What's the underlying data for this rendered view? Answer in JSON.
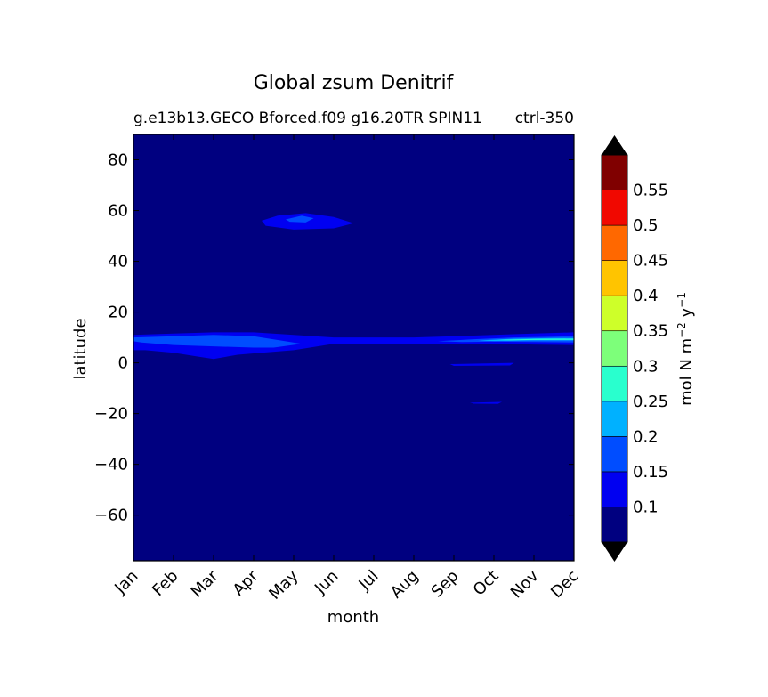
{
  "chart_data": {
    "type": "heatmap",
    "title": "Global zsum Denitrif",
    "subtitle_left": "g.e13b13.GECO Bforced.f09 g16.20TR SPIN11",
    "subtitle_right": "ctrl-350",
    "xlabel": "month",
    "ylabel": "latitude",
    "x_tick_labels": [
      "Jan",
      "Feb",
      "Mar",
      "Apr",
      "May",
      "Jun",
      "Jul",
      "Aug",
      "Sep",
      "Oct",
      "Nov",
      "Dec"
    ],
    "x_range": [
      1,
      12
    ],
    "y_range": [
      -78,
      90
    ],
    "y_ticks": [
      80,
      60,
      40,
      20,
      0,
      -20,
      -40,
      -60
    ],
    "y_tick_labels": [
      "80",
      "60",
      "40",
      "20",
      "0",
      "−20",
      "−40",
      "−60"
    ],
    "colorbar": {
      "label_main": "mol N m",
      "label_sup1": "−2",
      "label_mid": " y",
      "label_sup2": "−1",
      "levels": [
        0.05,
        0.1,
        0.15,
        0.2,
        0.25,
        0.3,
        0.35,
        0.4,
        0.45,
        0.5,
        0.55,
        0.6
      ],
      "tick_labels": [
        "0.1",
        "0.15",
        "0.2",
        "0.25",
        "0.3",
        "0.35",
        "0.4",
        "0.45",
        "0.5",
        "0.55"
      ],
      "colors": [
        "#000080",
        "#0000f1",
        "#004dff",
        "#00b1ff",
        "#29ffce",
        "#7dff7a",
        "#ceff29",
        "#ffc400",
        "#ff6800",
        "#f10800",
        "#800000"
      ],
      "extend_color": "#000000"
    },
    "background_level_color": "#000080",
    "features": [
      {
        "name": "equatorial band",
        "color": "#0000f1",
        "points": [
          [
            1,
            11
          ],
          [
            2,
            11.5
          ],
          [
            3,
            12
          ],
          [
            4,
            12
          ],
          [
            5,
            11
          ],
          [
            6,
            10
          ],
          [
            7,
            10
          ],
          [
            8,
            10
          ],
          [
            9,
            10.5
          ],
          [
            10,
            11
          ],
          [
            11,
            11.5
          ],
          [
            12,
            12
          ],
          [
            12,
            7
          ],
          [
            11,
            7.2
          ],
          [
            10,
            7.5
          ],
          [
            9,
            7.5
          ],
          [
            8,
            7.5
          ],
          [
            7,
            7.5
          ],
          [
            6,
            7.5
          ],
          [
            5,
            5
          ],
          [
            4.2,
            4
          ],
          [
            3.6,
            3.2
          ],
          [
            3,
            1.5
          ],
          [
            2.6,
            2.5
          ],
          [
            2,
            4
          ],
          [
            1.3,
            5
          ],
          [
            1,
            5
          ]
        ]
      },
      {
        "name": "equatorial core Jan-May",
        "color": "#004dff",
        "points": [
          [
            1,
            10
          ],
          [
            2,
            10.5
          ],
          [
            3,
            11
          ],
          [
            4,
            10.5
          ],
          [
            4.8,
            8.5
          ],
          [
            5.2,
            7.5
          ],
          [
            4.5,
            6
          ],
          [
            4,
            6
          ],
          [
            3,
            6.5
          ],
          [
            2,
            7
          ],
          [
            1.2,
            8
          ],
          [
            1,
            8.5
          ]
        ]
      },
      {
        "name": "equatorial core Aug-Dec",
        "color": "#004dff",
        "points": [
          [
            8.6,
            8.5
          ],
          [
            9.5,
            9.3
          ],
          [
            10.5,
            10
          ],
          [
            11.5,
            10.3
          ],
          [
            12,
            10.5
          ],
          [
            12,
            8
          ],
          [
            11,
            8.2
          ],
          [
            10,
            8.3
          ],
          [
            9.2,
            8.2
          ]
        ]
      },
      {
        "name": "equatorial max Oct-Dec",
        "color": "#00b1ff",
        "points": [
          [
            9.6,
            8.8
          ],
          [
            10.5,
            9.5
          ],
          [
            11.5,
            9.8
          ],
          [
            12,
            9.8
          ],
          [
            12,
            8.8
          ],
          [
            11,
            8.8
          ],
          [
            10,
            8.6
          ]
        ]
      },
      {
        "name": "equatorial peak Oct-Dec",
        "color": "#29ffce",
        "points": [
          [
            10.1,
            9
          ],
          [
            11,
            9.4
          ],
          [
            12,
            9.5
          ],
          [
            12,
            9.1
          ],
          [
            11,
            9
          ],
          [
            10.4,
            8.9
          ]
        ]
      },
      {
        "name": "north patch May-Jun",
        "color": "#0000f1",
        "points": [
          [
            4.2,
            56
          ],
          [
            4.6,
            58
          ],
          [
            5.3,
            59
          ],
          [
            6,
            57.5
          ],
          [
            6.5,
            55
          ],
          [
            6,
            53
          ],
          [
            5,
            52.5
          ],
          [
            4.3,
            54
          ]
        ]
      },
      {
        "name": "north patch core",
        "color": "#004dff",
        "points": [
          [
            4.8,
            56.5
          ],
          [
            5.2,
            58
          ],
          [
            5.5,
            57
          ],
          [
            5.3,
            55.3
          ],
          [
            4.9,
            55.6
          ]
        ]
      },
      {
        "name": "streak near equator Aug-Oct",
        "color": "#0000f1",
        "points": [
          [
            8.9,
            -0.5
          ],
          [
            10.5,
            0
          ],
          [
            10.4,
            -1
          ],
          [
            9,
            -1.2
          ]
        ]
      },
      {
        "name": "streak near -16 Sep-Oct",
        "color": "#0000f1",
        "points": [
          [
            9.4,
            -15.7
          ],
          [
            10.2,
            -15.4
          ],
          [
            10.1,
            -16.2
          ],
          [
            9.5,
            -16.1
          ]
        ]
      }
    ]
  }
}
